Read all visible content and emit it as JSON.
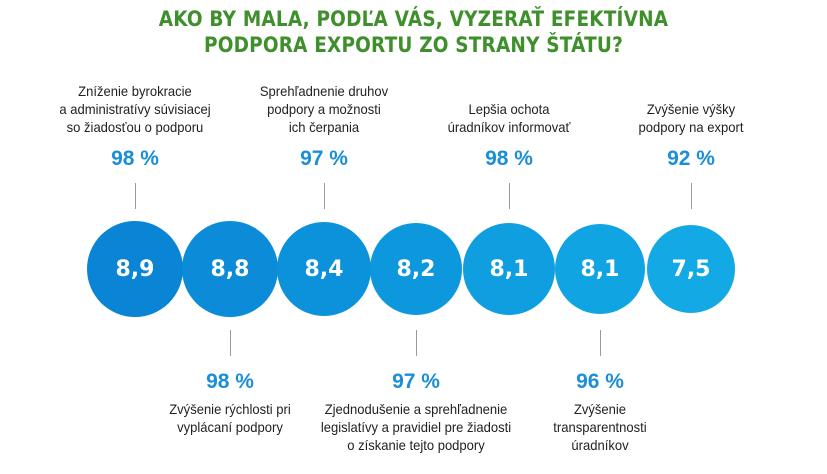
{
  "title": {
    "line1": "AKO BY MALA, PODĽA VÁS, VYZERAŤ EFEKTÍVNA",
    "line2": "PODPORA EXPORTU ZO STRANY ŠTÁTU?"
  },
  "colors": {
    "title": "#3f8f2c",
    "percent": "#1a8fd8",
    "circles": [
      "#0a84d4",
      "#0b8bd8",
      "#0c92db",
      "#0d98de",
      "#0f9fe1",
      "#11a4e3",
      "#13a9e5"
    ]
  },
  "items": [
    {
      "score": "8,9",
      "percent": "98 %",
      "position": "top",
      "label": [
        "Zníženie byrokracie",
        "a administratívy súvisiacej",
        "so žiadosťou o podporu"
      ]
    },
    {
      "score": "8,8",
      "percent": "98 %",
      "position": "bottom",
      "label": [
        "Zvýšenie rýchlosti pri",
        "vyplácaní podpory"
      ]
    },
    {
      "score": "8,4",
      "percent": "97 %",
      "position": "top",
      "label": [
        "Sprehľadnenie druhov",
        "podpory a možnosti",
        "ich čerpania"
      ]
    },
    {
      "score": "8,2",
      "percent": "97 %",
      "position": "bottom",
      "label": [
        "Zjednodušenie a sprehľadnenie",
        "legislatívy a pravidiel pre žiadosti",
        "o získanie tejto podpory"
      ]
    },
    {
      "score": "8,1",
      "percent": "98 %",
      "position": "top",
      "label": [
        "Lepšia ochota",
        "úradníkov informovať"
      ]
    },
    {
      "score": "8,1",
      "percent": "96 %",
      "position": "bottom",
      "label": [
        "Zvýšenie",
        "transparentnosti",
        "úradníkov"
      ]
    },
    {
      "score": "7,5",
      "percent": "92 %",
      "position": "top",
      "label": [
        "Zvýšenie výšky",
        "podpory na export"
      ]
    }
  ]
}
